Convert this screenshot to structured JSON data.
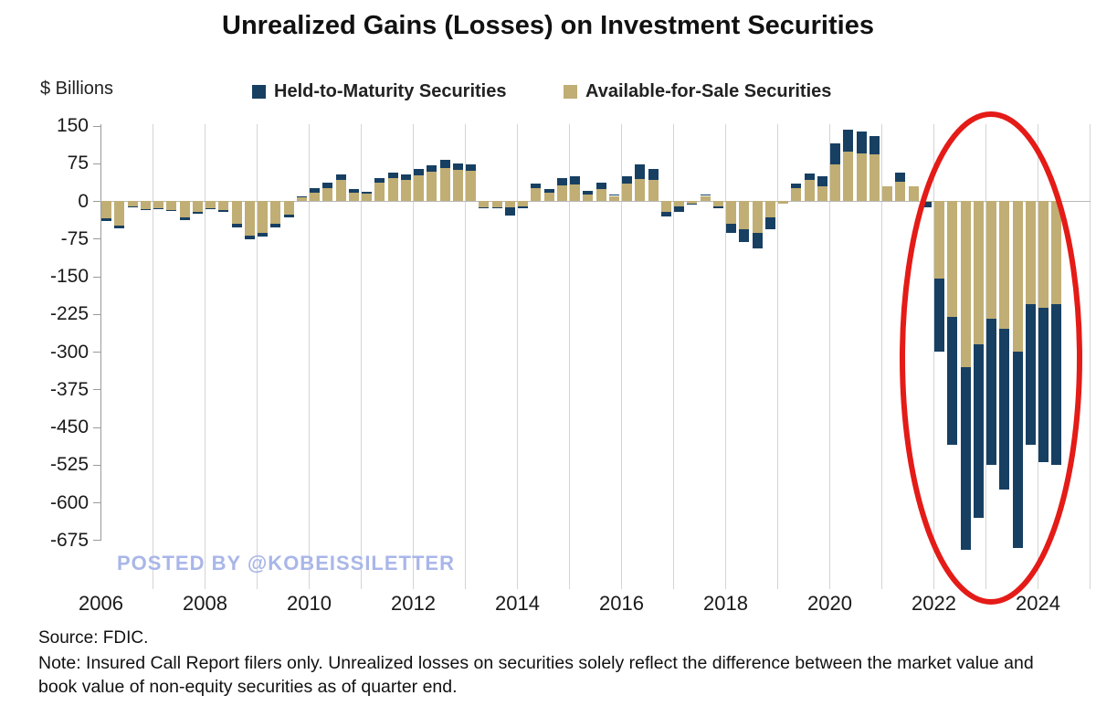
{
  "title": "Unrealized Gains (Losses) on Investment Securities",
  "y_axis_unit": "$ Billions",
  "legend": {
    "htm_label": "Held-to-Maturity Securities",
    "afs_label": "Available-for-Sale Securities"
  },
  "watermark": "POSTED BY @KOBEISSILETTER",
  "footer": {
    "source": "Source: FDIC.",
    "note": "Note: Insured Call Report filers only. Unrealized losses on securities solely reflect the difference between the market value and book value of non-equity securities as of quarter end."
  },
  "colors": {
    "htm": "#173f62",
    "afs": "#c0ae74",
    "annotation": "#e41b17",
    "watermark": "#a9b6e8",
    "gridline": "#d4d4d4"
  },
  "chart_data": {
    "type": "bar",
    "stacked": true,
    "stack_order": [
      "Available-for-Sale Securities",
      "Held-to-Maturity Securities"
    ],
    "title": "Unrealized Gains (Losses) on Investment Securities",
    "ylabel": "$ Billions",
    "ylim": [
      -675,
      150
    ],
    "y_ticks": [
      150,
      75,
      0,
      -75,
      -150,
      -225,
      -300,
      -375,
      -450,
      -525,
      -600,
      -675
    ],
    "x_tick_labels": [
      "2006",
      "2008",
      "2010",
      "2012",
      "2014",
      "2016",
      "2018",
      "2020",
      "2022",
      "2024"
    ],
    "grid": "vertical-yearly",
    "legend_position": "top",
    "categories": [
      "2006Q1",
      "2006Q2",
      "2006Q3",
      "2006Q4",
      "2007Q1",
      "2007Q2",
      "2007Q3",
      "2007Q4",
      "2008Q1",
      "2008Q2",
      "2008Q3",
      "2008Q4",
      "2009Q1",
      "2009Q2",
      "2009Q3",
      "2009Q4",
      "2010Q1",
      "2010Q2",
      "2010Q3",
      "2010Q4",
      "2011Q1",
      "2011Q2",
      "2011Q3",
      "2011Q4",
      "2012Q1",
      "2012Q2",
      "2012Q3",
      "2012Q4",
      "2013Q1",
      "2013Q2",
      "2013Q3",
      "2013Q4",
      "2014Q1",
      "2014Q2",
      "2014Q3",
      "2014Q4",
      "2015Q1",
      "2015Q2",
      "2015Q3",
      "2015Q4",
      "2016Q1",
      "2016Q2",
      "2016Q3",
      "2016Q4",
      "2017Q1",
      "2017Q2",
      "2017Q3",
      "2017Q4",
      "2018Q1",
      "2018Q2",
      "2018Q3",
      "2018Q4",
      "2019Q1",
      "2019Q2",
      "2019Q3",
      "2019Q4",
      "2020Q1",
      "2020Q2",
      "2020Q3",
      "2020Q4",
      "2021Q1",
      "2021Q2",
      "2021Q3",
      "2021Q4",
      "2022Q1",
      "2022Q2",
      "2022Q3",
      "2022Q4",
      "2023Q1",
      "2023Q2",
      "2023Q3",
      "2023Q4",
      "2024Q1",
      "2024Q2"
    ],
    "series": [
      {
        "name": "Available-for-Sale Securities",
        "color": "#c0ae74",
        "values": [
          -34,
          -49,
          -11,
          -16,
          -14,
          -19,
          -33,
          -21,
          -14,
          -18,
          -46,
          -69,
          -63,
          -45,
          -27,
          8,
          17,
          26,
          42,
          17,
          14,
          36,
          45,
          42,
          51,
          58,
          66,
          62,
          60,
          -12,
          -12,
          -12,
          -10,
          25,
          16,
          31,
          33,
          13,
          24,
          10,
          34,
          43,
          42,
          -21,
          -11,
          -6,
          10,
          -10,
          -45,
          -57,
          -63,
          -32,
          -6,
          25,
          42,
          30,
          72,
          98,
          95,
          92,
          30,
          39,
          30,
          -2,
          -155,
          -230,
          -330,
          -285,
          -235,
          -255,
          -300,
          -205,
          -212,
          -205
        ]
      },
      {
        "name": "Held-to-Maturity Securities",
        "color": "#173f62",
        "values": [
          -6,
          -6,
          -2,
          -2,
          -2,
          -2,
          -5,
          -4,
          -3,
          -3,
          -6,
          -8,
          -8,
          -8,
          -6,
          2,
          8,
          10,
          11,
          7,
          4,
          9,
          11,
          11,
          13,
          13,
          16,
          12,
          12,
          -3,
          -3,
          -18,
          -4,
          9,
          8,
          15,
          16,
          7,
          12,
          3,
          15,
          29,
          22,
          -9,
          -11,
          -2,
          2,
          -4,
          -18,
          -25,
          -32,
          -24,
          0,
          10,
          12,
          20,
          42,
          44,
          43,
          38,
          0,
          18,
          0,
          -10,
          -145,
          -255,
          -365,
          -345,
          -290,
          -320,
          -390,
          -280,
          -308,
          -320
        ]
      }
    ],
    "annotation": {
      "type": "ellipse",
      "purpose": "highlights the large unrealized losses from 2022 through 2024",
      "color": "#e41b17"
    }
  }
}
